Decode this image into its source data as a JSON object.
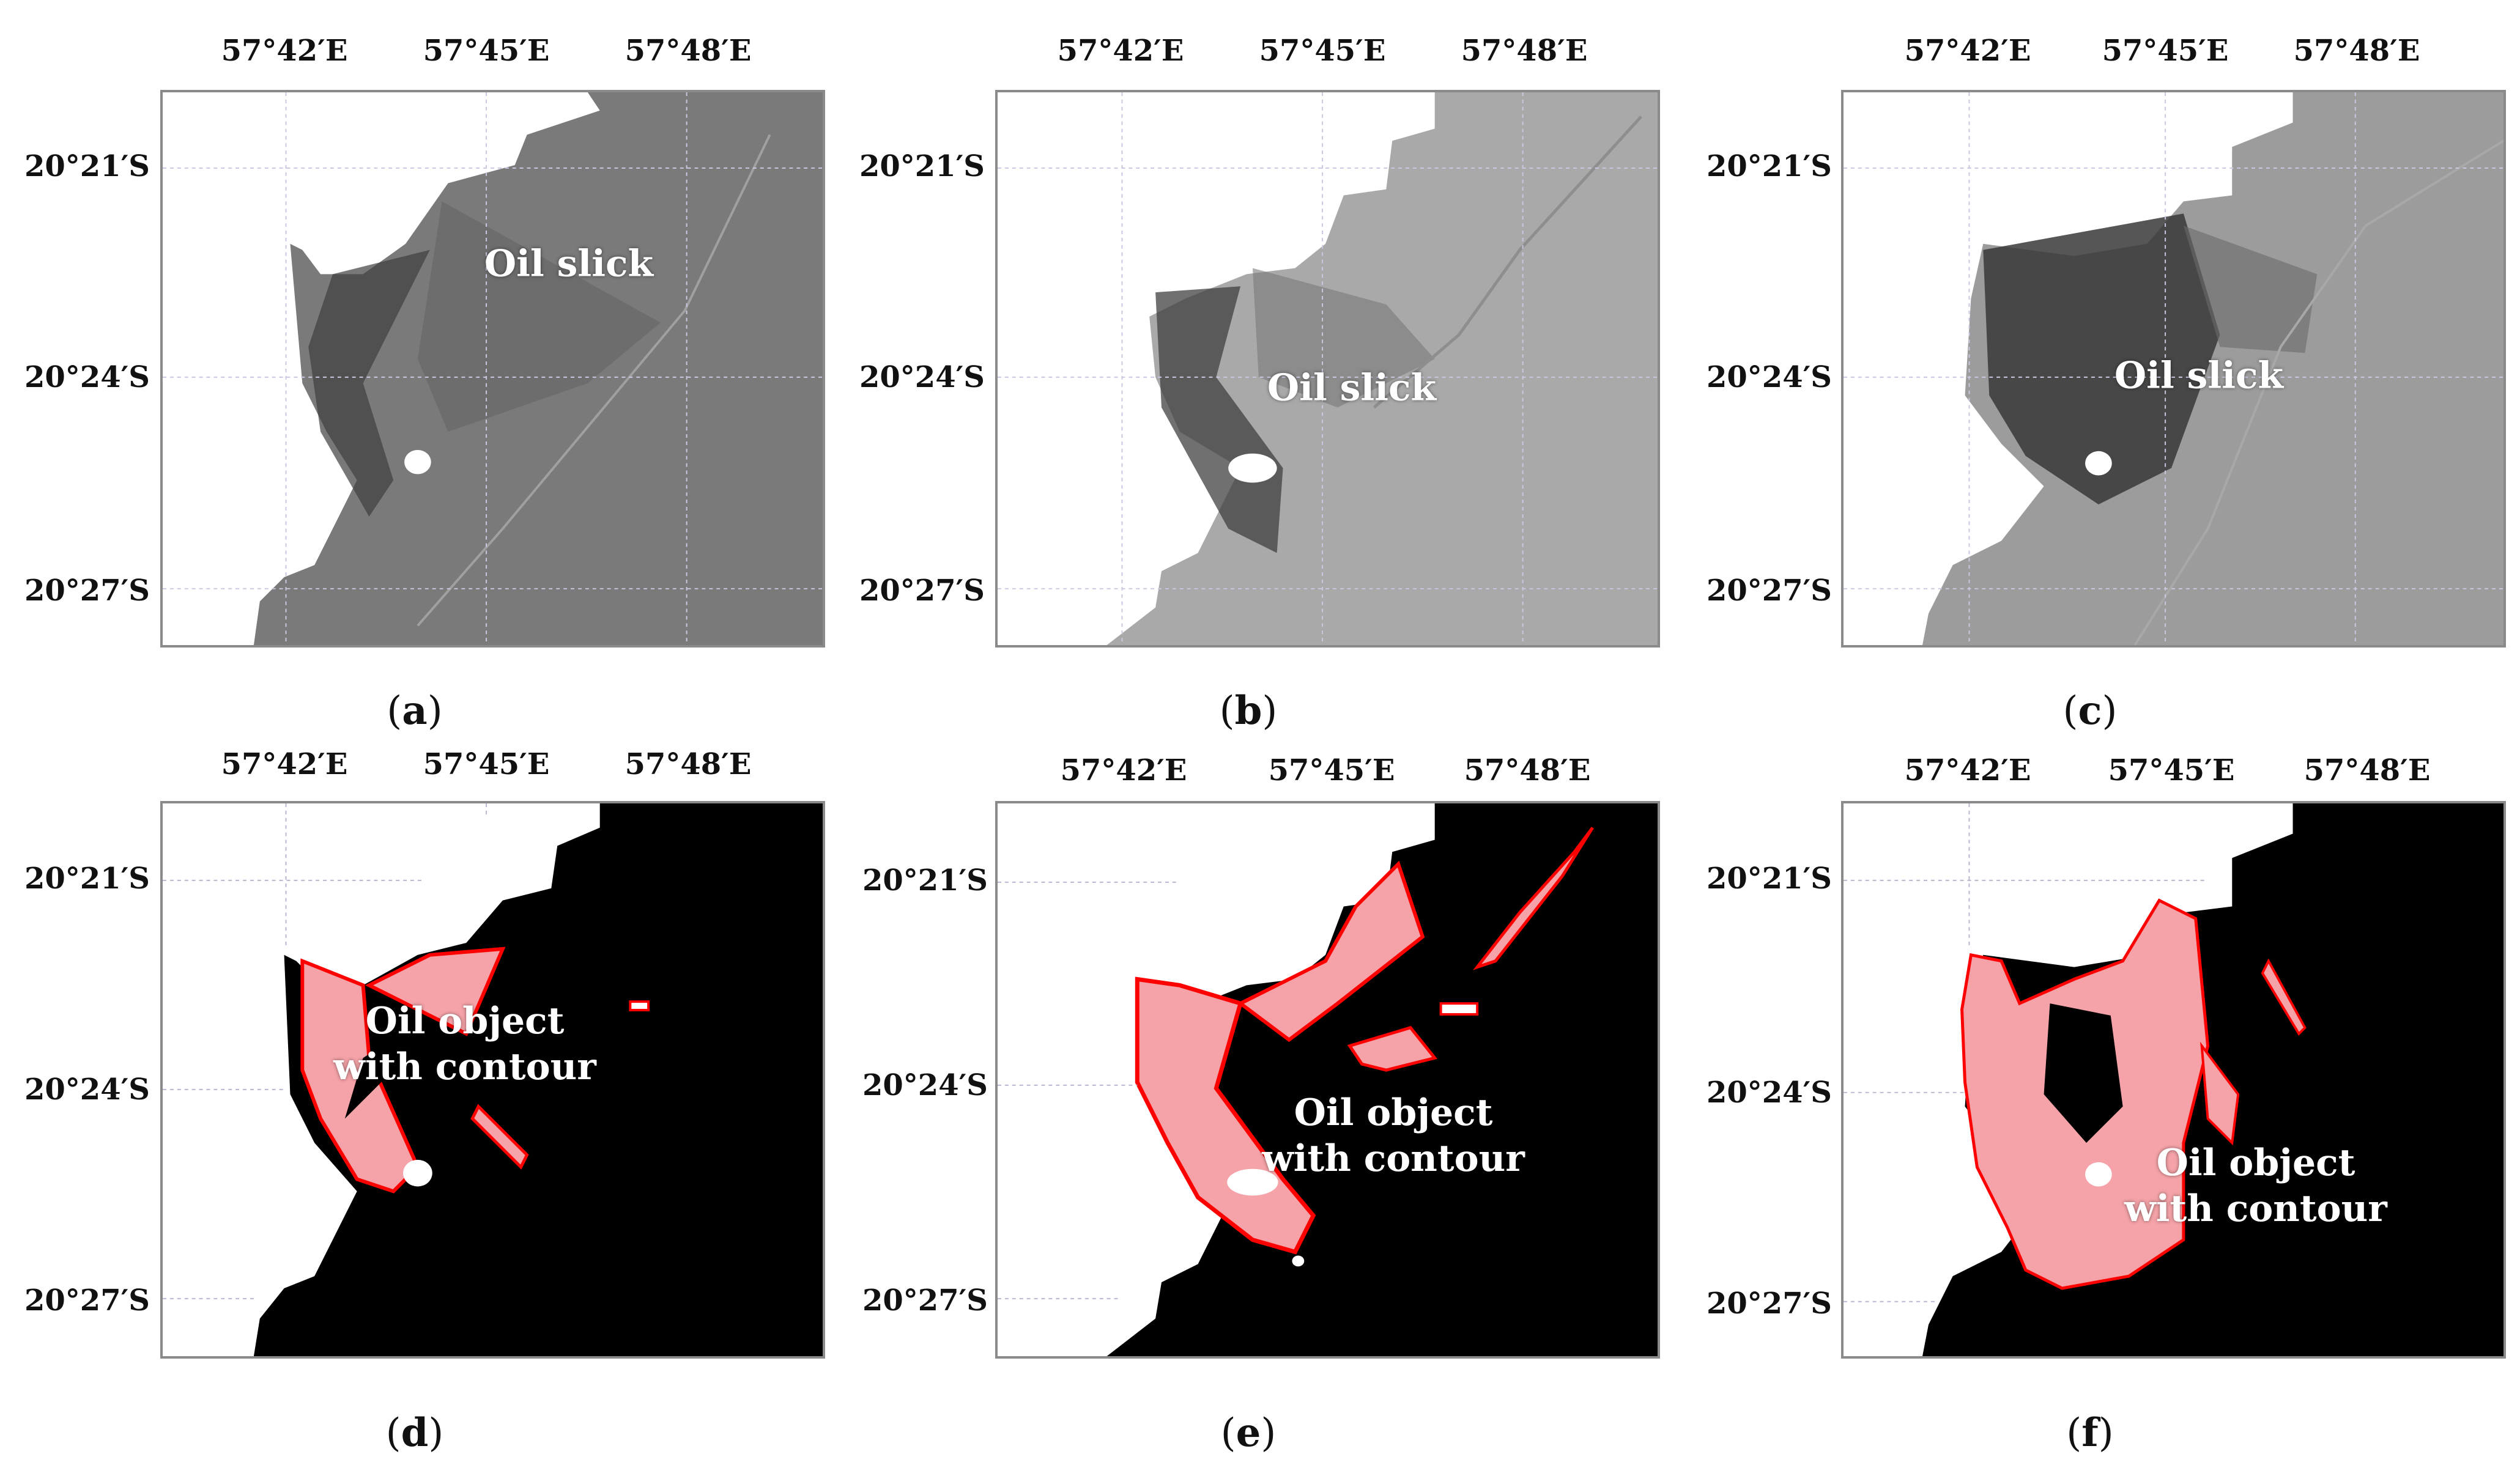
{
  "colors": {
    "land": "#ffffff",
    "sea_a": "#7a7a7a",
    "sea_b": "#a9a9a9",
    "sea_c": "#9c9c9c",
    "slick_dark": "#3a3a3a",
    "binary_bg": "#000000",
    "oil_fill": "#f5a3a8",
    "contour": "#ff0000",
    "grid": "#b8b8d0"
  },
  "lon_ticks": [
    "57°42′E",
    "57°45′E",
    "57°48′E"
  ],
  "lat_ticks": [
    "20°21′S",
    "20°24′S",
    "20°27′S"
  ],
  "panels": [
    {
      "id": "a",
      "sublabel_prefix": "(",
      "letter": "a",
      "sublabel_suffix": ")",
      "annotation": [
        "Oil slick"
      ],
      "kind": "sar",
      "sea_color": "#7a7a7a"
    },
    {
      "id": "b",
      "sublabel_prefix": "(",
      "letter": "b",
      "sublabel_suffix": ")",
      "annotation": [
        "Oil slick"
      ],
      "kind": "sar",
      "sea_color": "#a9a9a9"
    },
    {
      "id": "c",
      "sublabel_prefix": "(",
      "letter": "c",
      "sublabel_suffix": ")",
      "annotation": [
        "Oil slick"
      ],
      "kind": "sar",
      "sea_color": "#9c9c9c"
    },
    {
      "id": "d",
      "sublabel_prefix": "(",
      "letter": "d",
      "sublabel_suffix": ")",
      "annotation": [
        "Oil object",
        "with contour"
      ],
      "kind": "binary"
    },
    {
      "id": "e",
      "sublabel_prefix": "(",
      "letter": "e",
      "sublabel_suffix": ")",
      "annotation": [
        "Oil object",
        "with contour"
      ],
      "kind": "binary"
    },
    {
      "id": "f",
      "sublabel_prefix": "(",
      "letter": "f",
      "sublabel_suffix": ")",
      "annotation": [
        "Oil object",
        "with contour"
      ],
      "kind": "binary"
    }
  ]
}
